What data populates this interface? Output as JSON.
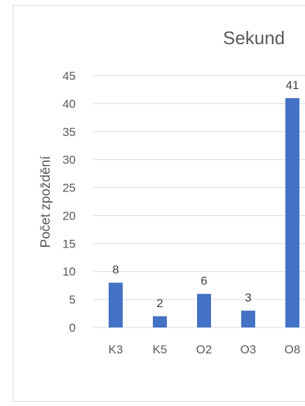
{
  "chart_data": {
    "type": "bar",
    "title": "Sekund",
    "xlabel": "",
    "ylabel": "Počet zpoždění",
    "categories": [
      "K3",
      "K5",
      "O2",
      "O3",
      "O8"
    ],
    "values": [
      8,
      2,
      6,
      3,
      41
    ],
    "data_labels": [
      "8",
      "2",
      "6",
      "3",
      "41"
    ],
    "y_ticks": [
      "0",
      "5",
      "10",
      "15",
      "20",
      "25",
      "30",
      "35",
      "40",
      "45"
    ],
    "ylim": [
      0,
      45
    ],
    "grid": true,
    "legend": "none",
    "bar_color": "#4472c4"
  }
}
